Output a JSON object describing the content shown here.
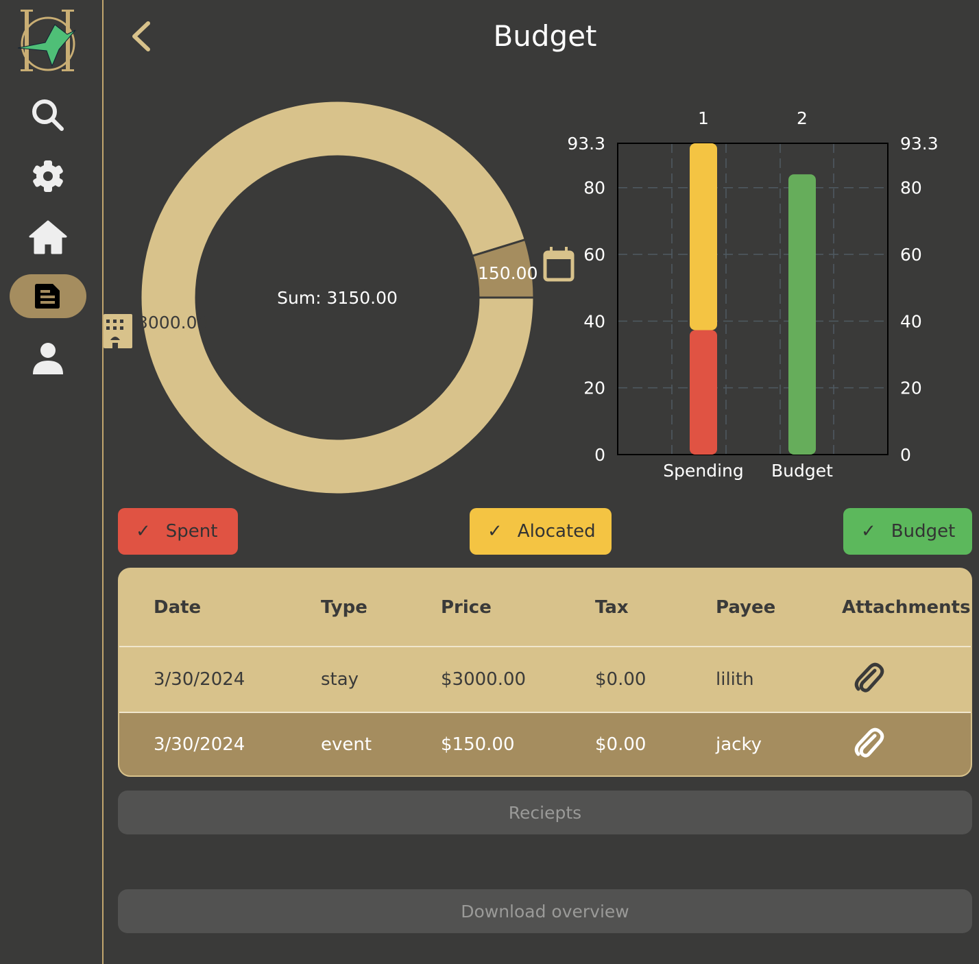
{
  "header": {
    "title": "Budget",
    "back_icon": "chevron-left-icon"
  },
  "sidebar": {
    "items": [
      {
        "icon": "search-icon"
      },
      {
        "icon": "gear-icon"
      },
      {
        "icon": "home-icon"
      },
      {
        "icon": "document-icon",
        "active": true
      },
      {
        "icon": "user-icon"
      }
    ]
  },
  "donut": {
    "sum_label": "Sum: 3150.00",
    "slices": [
      {
        "value": 3000,
        "label": "3000.00",
        "icon": "building-icon",
        "color": "#d8c28b"
      },
      {
        "value": 150,
        "label": "150.00",
        "icon": "calendar-icon",
        "color": "#a58d5f"
      }
    ]
  },
  "chart_data": {
    "type": "bar",
    "stacked": true,
    "categories": [
      "Spending",
      "Budget"
    ],
    "top_labels": [
      "1",
      "2"
    ],
    "yticks": [
      "0",
      "20",
      "40",
      "60",
      "80",
      "93.3"
    ],
    "ylim": [
      0,
      93.3
    ],
    "grid": true,
    "series": [
      {
        "key": "spent",
        "values": [
          37.3,
          0
        ],
        "color": "#e05343"
      },
      {
        "key": "allocated",
        "values": [
          56.0,
          0
        ],
        "color": "#f4c443"
      },
      {
        "key": "budget",
        "values": [
          0,
          84
        ],
        "color": "#66ad5b"
      }
    ]
  },
  "legend": {
    "spent": "Spent",
    "allocated": "Alocated",
    "budget": "Budget",
    "colors": {
      "spent": "#e05343",
      "allocated": "#f4c443",
      "budget": "#5cb85c"
    }
  },
  "table": {
    "headers": [
      "Date",
      "Type",
      "Price",
      "Tax",
      "Payee",
      "Attachments"
    ],
    "rows": [
      {
        "date": "3/30/2024",
        "type": "stay",
        "price": "$3000.00",
        "tax": "$0.00",
        "payee": "lilith"
      },
      {
        "date": "3/30/2024",
        "type": "event",
        "price": "$150.00",
        "tax": "$0.00",
        "payee": "jacky"
      }
    ]
  },
  "buttons": {
    "receipts": "Reciepts",
    "download": "Download overview"
  }
}
